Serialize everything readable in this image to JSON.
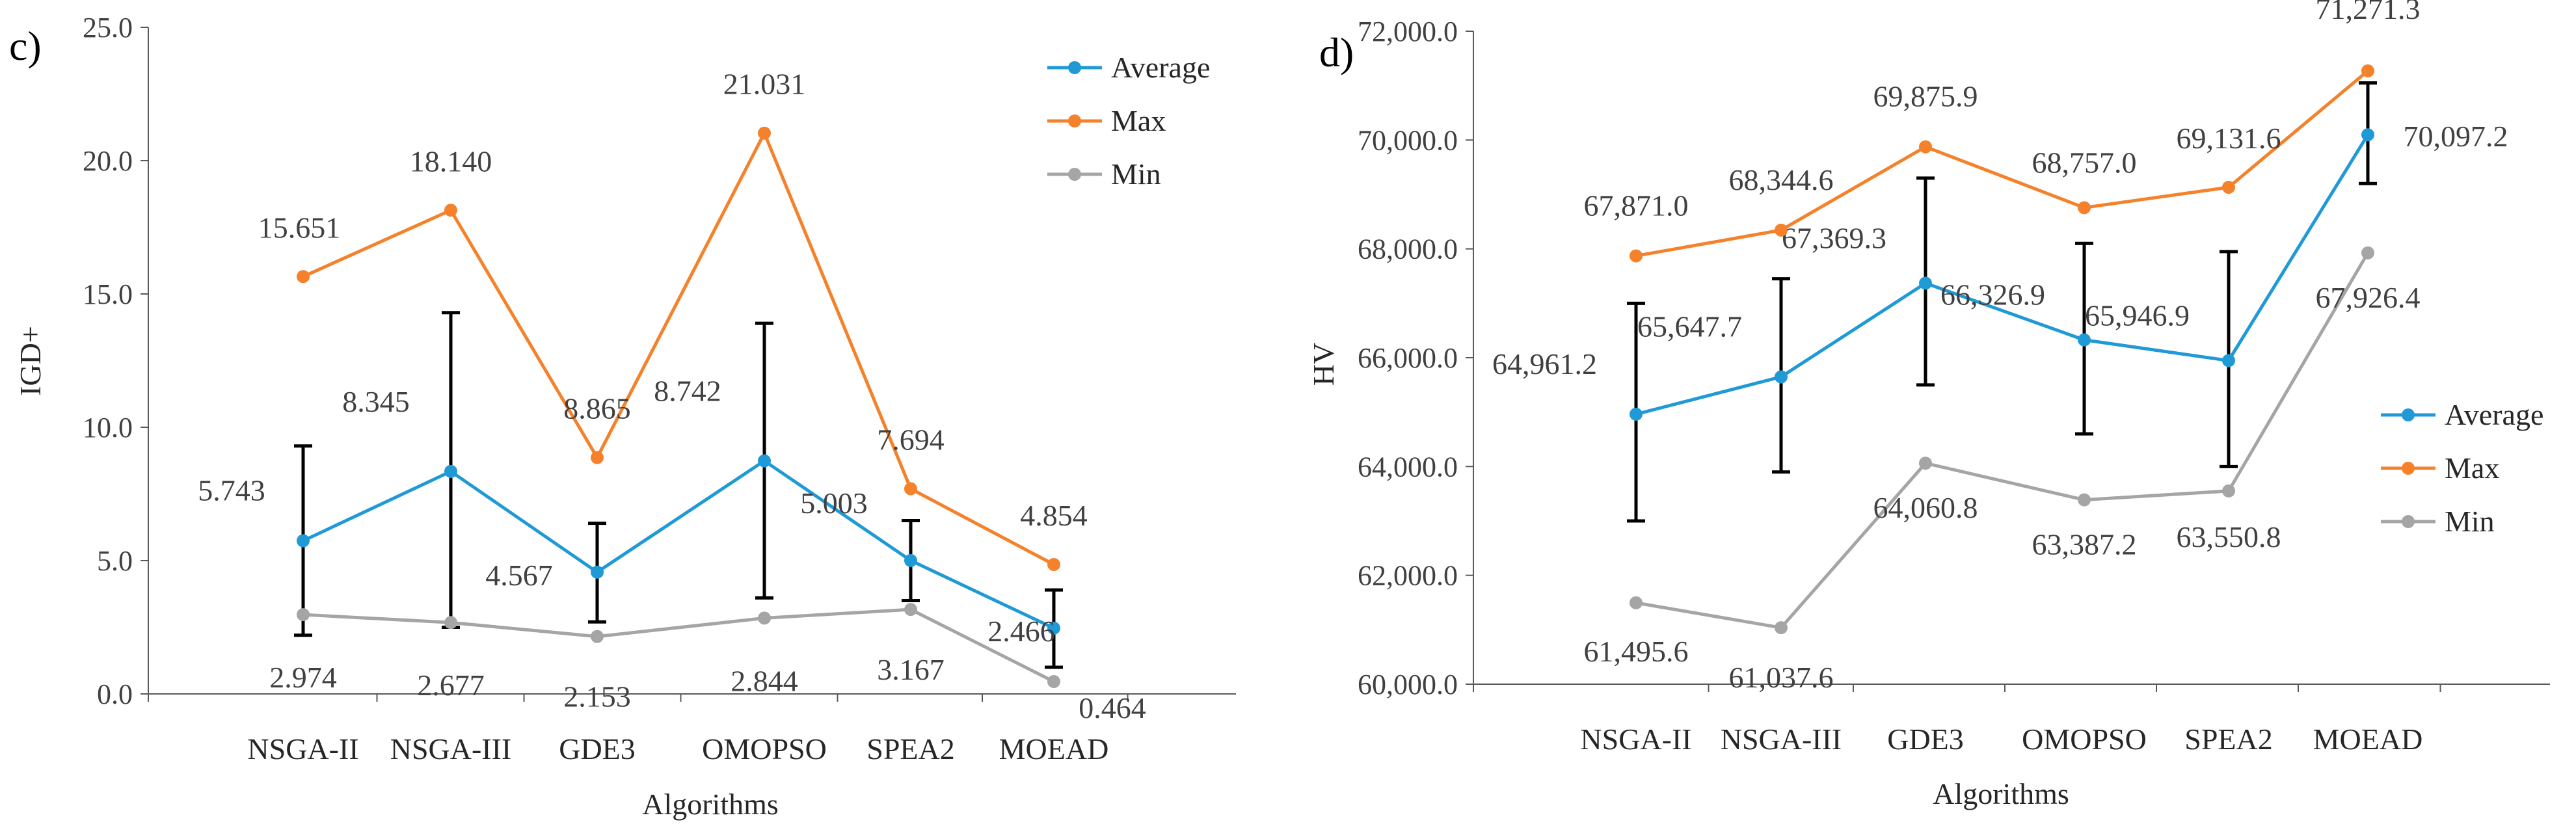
{
  "chart_data": [
    {
      "type": "line",
      "panel_label": "c)",
      "xlabel": "Algorithms",
      "ylabel": "IGD+",
      "ylim": [
        0,
        25
      ],
      "y_ticks": [
        "0.0",
        "5.0",
        "10.0",
        "15.0",
        "20.0",
        "25.0"
      ],
      "categories": [
        "NSGA-II",
        "NSGA-III",
        "GDE3",
        "OMOPSO",
        "SPEA2",
        "MOEAD"
      ],
      "legend_position": "top-right",
      "series": [
        {
          "name": "Average",
          "color": "#1f9ad6",
          "values": [
            5.743,
            8.345,
            4.567,
            8.742,
            5.003,
            2.466
          ],
          "labels": [
            "5.743",
            "8.345",
            "4.567",
            "8.742",
            "5.003",
            "2.466"
          ]
        },
        {
          "name": "Max",
          "color": "#f5822a",
          "values": [
            15.651,
            18.14,
            8.865,
            21.031,
            7.694,
            4.854
          ],
          "labels": [
            "15.651",
            "18.140",
            "8.865",
            "21.031",
            "7.694",
            "4.854"
          ]
        },
        {
          "name": "Min",
          "color": "#a5a5a5",
          "values": [
            2.974,
            2.677,
            2.153,
            2.844,
            3.167,
            0.464
          ],
          "labels": [
            "2.974",
            "2.677",
            "2.153",
            "2.844",
            "3.167",
            "0.464"
          ]
        }
      ],
      "error_bars": {
        "series": "Average",
        "low": [
          2.2,
          2.5,
          2.7,
          3.6,
          3.5,
          1.0
        ],
        "high": [
          9.3,
          14.3,
          6.4,
          13.9,
          6.5,
          3.9
        ]
      }
    },
    {
      "type": "line",
      "panel_label": "d)",
      "xlabel": "Algorithms",
      "ylabel": "HV",
      "ylim": [
        60000,
        72000
      ],
      "y_ticks": [
        "60,000.0",
        "62,000.0",
        "64,000.0",
        "66,000.0",
        "68,000.0",
        "70,000.0",
        "72,000.0"
      ],
      "categories": [
        "NSGA-II",
        "NSGA-III",
        "GDE3",
        "OMOPSO",
        "SPEA2",
        "MOEAD"
      ],
      "legend_position": "middle-right",
      "series": [
        {
          "name": "Average",
          "color": "#1f9ad6",
          "values": [
            64961.2,
            65647.7,
            67369.3,
            66326.9,
            65946.9,
            70097.2
          ],
          "labels": [
            "64,961.2",
            "65,647.7",
            "67,369.3",
            "66,326.9",
            "65,946.9",
            "70,097.2"
          ]
        },
        {
          "name": "Max",
          "color": "#f5822a",
          "values": [
            67871.0,
            68344.6,
            69875.9,
            68757.0,
            69131.6,
            71271.3
          ],
          "labels": [
            "67,871.0",
            "68,344.6",
            "69,875.9",
            "68,757.0",
            "69,131.6",
            "71,271.3"
          ]
        },
        {
          "name": "Min",
          "color": "#a5a5a5",
          "values": [
            61495.6,
            61037.6,
            64060.8,
            63387.2,
            63550.8,
            67926.4
          ],
          "labels": [
            "61,495.6",
            "61,037.6",
            "64,060.8",
            "63,387.2",
            "63,550.8",
            "67,926.4"
          ]
        }
      ],
      "error_bars": {
        "series": "Average",
        "low": [
          63000,
          63900,
          65500,
          64600,
          64000,
          69200
        ],
        "high": [
          67000,
          67450,
          69300,
          68100,
          67950,
          71050
        ]
      }
    }
  ]
}
